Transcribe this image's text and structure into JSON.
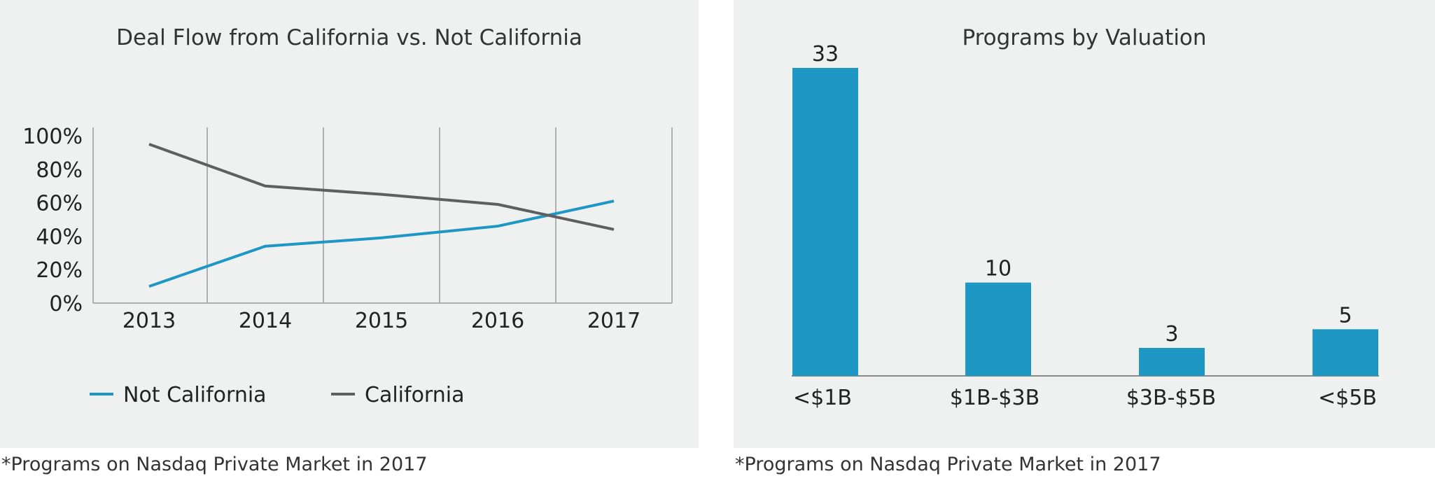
{
  "chart_data": [
    {
      "type": "line",
      "title": "Deal Flow from California vs. Not California",
      "x": [
        "2013",
        "2014",
        "2015",
        "2016",
        "2017"
      ],
      "yticks": [
        "0%",
        "20%",
        "40%",
        "60%",
        "80%",
        "100%"
      ],
      "ylim": [
        0,
        100
      ],
      "grid": "vertical",
      "legend_position": "bottom-left",
      "series": [
        {
          "name": "Not California",
          "color": "#1f97c4",
          "values": [
            10,
            34,
            39,
            46,
            61
          ]
        },
        {
          "name": "California",
          "color": "#5f5f5f",
          "values": [
            95,
            70,
            65,
            59,
            44
          ]
        }
      ]
    },
    {
      "type": "bar",
      "title": "Programs by Valuation",
      "categories": [
        "<$1B",
        "$1B-$3B",
        "$3B-$5B",
        "<$5B"
      ],
      "values": [
        33,
        10,
        3,
        5
      ],
      "color": "#1f97c4",
      "ylim": [
        0,
        33
      ]
    }
  ],
  "footnotes": {
    "left": "*Programs on Nasdaq Private Market in 2017",
    "right": "*Programs on Nasdaq Private Market in 2017"
  }
}
